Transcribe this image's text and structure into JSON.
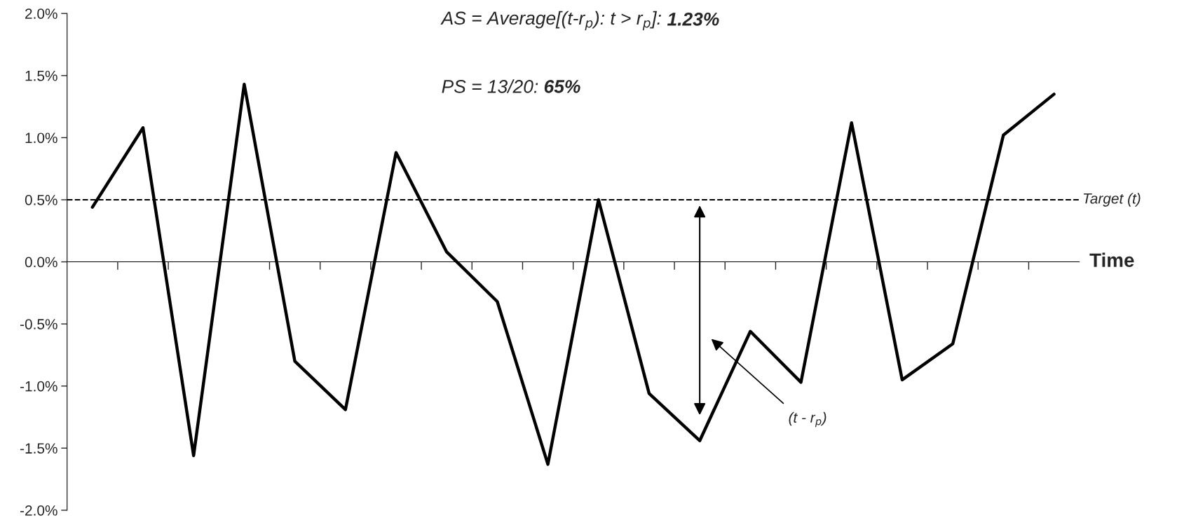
{
  "chart_data": {
    "type": "line",
    "categories": [
      null,
      null,
      null,
      null,
      null,
      null,
      null,
      null,
      null,
      null,
      null,
      null,
      null,
      null,
      null,
      null,
      null,
      null,
      null,
      null
    ],
    "series": [
      {
        "color": "#000000",
        "values": [
          0.44,
          1.08,
          -1.56,
          1.43,
          -0.8,
          -1.19,
          0.88,
          0.08,
          -0.32,
          -1.63,
          0.5,
          -1.06,
          -1.44,
          -0.56,
          -0.97,
          1.12,
          -0.95,
          -0.66,
          1.02,
          1.35
        ]
      }
    ],
    "xlabel": "Time",
    "ylim": [
      -2.0,
      2.0
    ],
    "yticks": [
      {
        "value": -2.0,
        "label": "-2.0%"
      },
      {
        "value": -1.5,
        "label": "-1.5%"
      },
      {
        "value": -1.0,
        "label": "-1.0%"
      },
      {
        "value": -0.5,
        "label": "-0.5%"
      },
      {
        "value": 0.0,
        "label": "0.0%"
      },
      {
        "value": 0.5,
        "label": "0.5%"
      },
      {
        "value": 1.0,
        "label": "1.0%"
      },
      {
        "value": 1.5,
        "label": "1.5%"
      },
      {
        "value": 2.0,
        "label": "2.0%"
      }
    ],
    "tick_labels": "y",
    "grid": false,
    "legend": false,
    "marker": "none",
    "line_style": "solid",
    "ref_lines": [
      {
        "axis": "y",
        "value": 0.5,
        "label": "Target (t)",
        "color": "#000000",
        "line_style": "dashed"
      }
    ],
    "annotations": [
      "AS = Average[(t-r$_{p}$): t > r$_{p}$]:",
      "1.23%",
      "PS = 13/20:",
      "65%",
      "(t - r$_{p}$)"
    ]
  }
}
